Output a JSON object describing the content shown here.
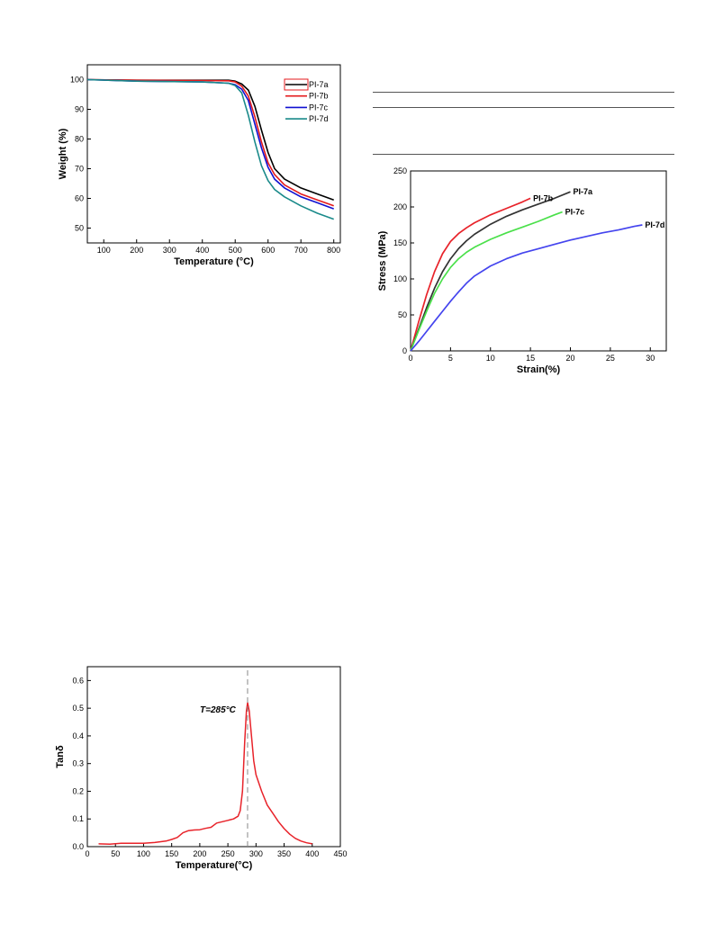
{
  "chart_data": [
    {
      "id": "tga",
      "type": "line",
      "xlabel": "Temperature (°C)",
      "ylabel": "Weight (%)",
      "xlim": [
        50,
        820
      ],
      "ylim": [
        45,
        105
      ],
      "xticks": [
        100,
        200,
        300,
        400,
        500,
        600,
        700,
        800
      ],
      "yticks": [
        50,
        60,
        70,
        80,
        90,
        100
      ],
      "legend_position": "top-right",
      "series": [
        {
          "name": "PI-7a",
          "color": "#000000",
          "points": [
            [
              50,
              100
            ],
            [
              200,
              99.8
            ],
            [
              400,
              99.8
            ],
            [
              480,
              99.8
            ],
            [
              500,
              99.5
            ],
            [
              520,
              98.5
            ],
            [
              540,
              96.5
            ],
            [
              560,
              91
            ],
            [
              580,
              83
            ],
            [
              600,
              75.5
            ],
            [
              620,
              70
            ],
            [
              650,
              66.5
            ],
            [
              700,
              63.5
            ],
            [
              750,
              61.5
            ],
            [
              800,
              59.5
            ]
          ]
        },
        {
          "name": "PI-7b",
          "color": "#e41a1c",
          "points": [
            [
              50,
              100
            ],
            [
              200,
              99.8
            ],
            [
              400,
              99.7
            ],
            [
              480,
              99.6
            ],
            [
              500,
              99.2
            ],
            [
              520,
              97.8
            ],
            [
              540,
              94.5
            ],
            [
              560,
              87.5
            ],
            [
              580,
              79
            ],
            [
              600,
              72
            ],
            [
              620,
              68
            ],
            [
              650,
              64.5
            ],
            [
              700,
              61.5
            ],
            [
              750,
              59.5
            ],
            [
              800,
              57.5
            ]
          ]
        },
        {
          "name": "PI-7c",
          "color": "#1010d0",
          "points": [
            [
              50,
              100
            ],
            [
              200,
              99.5
            ],
            [
              400,
              99.2
            ],
            [
              480,
              98.8
            ],
            [
              500,
              98.3
            ],
            [
              520,
              96.8
            ],
            [
              540,
              93
            ],
            [
              560,
              85
            ],
            [
              580,
              77
            ],
            [
              600,
              70.5
            ],
            [
              620,
              66.5
            ],
            [
              650,
              63.5
            ],
            [
              700,
              60.5
            ],
            [
              750,
              58.5
            ],
            [
              800,
              56.5
            ]
          ]
        },
        {
          "name": "PI-7d",
          "color": "#1a8a8a",
          "points": [
            [
              50,
              100
            ],
            [
              200,
              99.5
            ],
            [
              400,
              99.2
            ],
            [
              480,
              98.8
            ],
            [
              500,
              98
            ],
            [
              520,
              95.5
            ],
            [
              540,
              88
            ],
            [
              560,
              79
            ],
            [
              580,
              71
            ],
            [
              600,
              66
            ],
            [
              620,
              63
            ],
            [
              650,
              60.5
            ],
            [
              700,
              57.5
            ],
            [
              750,
              55
            ],
            [
              800,
              53
            ]
          ]
        }
      ]
    },
    {
      "id": "stress-strain",
      "type": "line",
      "xlabel": "Strain(%)",
      "ylabel": "Stress (MPa)",
      "xlim": [
        0,
        32
      ],
      "ylim": [
        0,
        250
      ],
      "xticks": [
        0,
        5,
        10,
        15,
        20,
        25,
        30
      ],
      "yticks": [
        0,
        50,
        100,
        150,
        200,
        250
      ],
      "series": [
        {
          "name": "PI-7b",
          "color": "#e8232a",
          "points": [
            [
              0,
              0
            ],
            [
              1,
              40
            ],
            [
              2,
              78
            ],
            [
              3,
              110
            ],
            [
              4,
              135
            ],
            [
              5,
              152
            ],
            [
              6,
              163
            ],
            [
              7,
              171
            ],
            [
              8,
              178
            ],
            [
              10,
              189
            ],
            [
              12,
              198
            ],
            [
              14,
              207
            ],
            [
              15,
              212
            ]
          ]
        },
        {
          "name": "PI-7a",
          "color": "#333333",
          "points": [
            [
              0,
              0
            ],
            [
              1,
              30
            ],
            [
              2,
              60
            ],
            [
              3,
              87
            ],
            [
              4,
              110
            ],
            [
              5,
              128
            ],
            [
              6,
              142
            ],
            [
              7,
              153
            ],
            [
              8,
              162
            ],
            [
              10,
              176
            ],
            [
              12,
              187
            ],
            [
              14,
              196
            ],
            [
              16,
              204
            ],
            [
              18,
              212
            ],
            [
              20,
              221
            ]
          ]
        },
        {
          "name": "PI-7c",
          "color": "#4ae04a",
          "points": [
            [
              0,
              0
            ],
            [
              1,
              28
            ],
            [
              2,
              55
            ],
            [
              3,
              80
            ],
            [
              4,
              100
            ],
            [
              5,
              116
            ],
            [
              6,
              128
            ],
            [
              7,
              137
            ],
            [
              8,
              144
            ],
            [
              10,
              155
            ],
            [
              12,
              164
            ],
            [
              14,
              172
            ],
            [
              16,
              180
            ],
            [
              18,
              189
            ],
            [
              19,
              193
            ]
          ]
        },
        {
          "name": "PI-7d",
          "color": "#4444ee",
          "points": [
            [
              0,
              0
            ],
            [
              1,
              13
            ],
            [
              2,
              27
            ],
            [
              3,
              41
            ],
            [
              4,
              55
            ],
            [
              5,
              69
            ],
            [
              6,
              82
            ],
            [
              7,
              94
            ],
            [
              8,
              104
            ],
            [
              10,
              118
            ],
            [
              12,
              128
            ],
            [
              14,
              136
            ],
            [
              16,
              142
            ],
            [
              18,
              148
            ],
            [
              20,
              154
            ],
            [
              22,
              159
            ],
            [
              24,
              164
            ],
            [
              26,
              168
            ],
            [
              28,
              173
            ],
            [
              29,
              175
            ]
          ]
        }
      ]
    },
    {
      "id": "dma",
      "type": "line",
      "xlabel": "Temperature(°C)",
      "ylabel": "Tanδ",
      "xlim": [
        0,
        450
      ],
      "ylim": [
        0,
        0.65
      ],
      "xticks": [
        0,
        50,
        100,
        150,
        200,
        250,
        300,
        350,
        400,
        450
      ],
      "yticks": [
        0.0,
        0.1,
        0.2,
        0.3,
        0.4,
        0.5,
        0.6
      ],
      "annotation": "T=285°C",
      "marker_x": 285,
      "series": [
        {
          "color": "#e8232a",
          "points": [
            [
              20,
              0.01
            ],
            [
              40,
              0.009
            ],
            [
              60,
              0.012
            ],
            [
              80,
              0.012
            ],
            [
              100,
              0.012
            ],
            [
              120,
              0.015
            ],
            [
              140,
              0.02
            ],
            [
              150,
              0.026
            ],
            [
              160,
              0.033
            ],
            [
              170,
              0.05
            ],
            [
              180,
              0.058
            ],
            [
              190,
              0.06
            ],
            [
              200,
              0.061
            ],
            [
              210,
              0.066
            ],
            [
              220,
              0.07
            ],
            [
              230,
              0.085
            ],
            [
              240,
              0.09
            ],
            [
              250,
              0.095
            ],
            [
              260,
              0.1
            ],
            [
              268,
              0.11
            ],
            [
              272,
              0.13
            ],
            [
              276,
              0.2
            ],
            [
              280,
              0.38
            ],
            [
              283,
              0.49
            ],
            [
              285,
              0.52
            ],
            [
              288,
              0.49
            ],
            [
              292,
              0.4
            ],
            [
              296,
              0.31
            ],
            [
              300,
              0.26
            ],
            [
              310,
              0.2
            ],
            [
              320,
              0.15
            ],
            [
              330,
              0.12
            ],
            [
              340,
              0.09
            ],
            [
              350,
              0.065
            ],
            [
              360,
              0.045
            ],
            [
              370,
              0.03
            ],
            [
              380,
              0.02
            ],
            [
              390,
              0.014
            ],
            [
              400,
              0.01
            ]
          ]
        }
      ]
    }
  ]
}
